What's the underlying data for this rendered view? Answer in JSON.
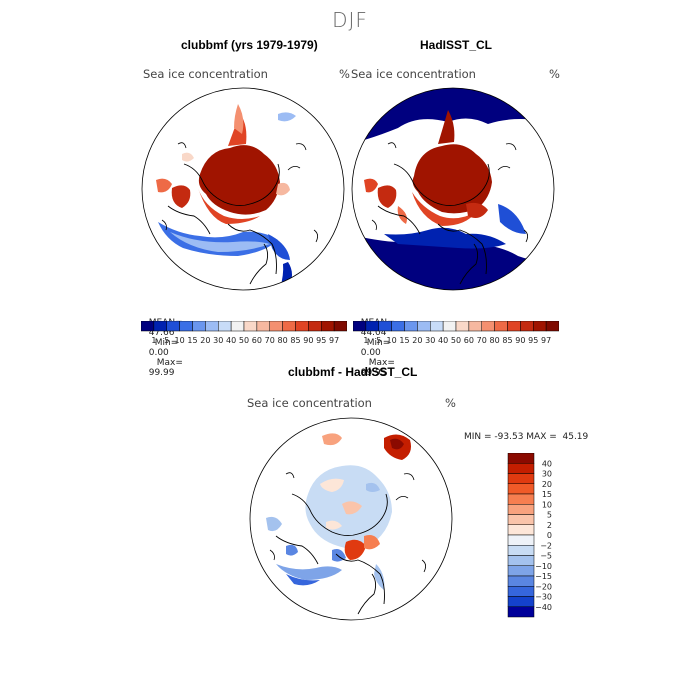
{
  "figure": {
    "season": "DJF",
    "colors": {
      "ice_dark": "#a01800",
      "ice_mid": "#e04020",
      "ice_light": "#f6a884",
      "water_dark": "#00008b",
      "water_mid": "#2f64e0",
      "water_light": "#c8dcf6",
      "neutral": "#f4f4f4"
    }
  },
  "panels": [
    {
      "title": "clubbmf (yrs 1979-1979)",
      "variable": "Sea ice concentration",
      "unit": "%",
      "mean_label": "MEAN=",
      "mean": "47.66",
      "min_label": "Min=",
      "min": "0.00",
      "max_label": "Max=",
      "max": "99.99"
    },
    {
      "title": "HadISST_CL",
      "variable": "Sea ice concentration",
      "unit": "%",
      "mean_label": "MEAN=",
      "mean": "44.04",
      "min_label": "Min=",
      "min": "0.00",
      "max_label": "Max=",
      "max": "99.95"
    }
  ],
  "abs_colorbar": {
    "labels": [
      "1",
      "5",
      "10",
      "15",
      "20",
      "30",
      "40",
      "50",
      "60",
      "70",
      "80",
      "85",
      "90",
      "95",
      "97"
    ],
    "colors": [
      "#00007f",
      "#0022b0",
      "#1f4fd6",
      "#3b6fe6",
      "#6a96ee",
      "#9cbcf4",
      "#c8dcf8",
      "#f2f2f2",
      "#f9d8c8",
      "#f6b8a0",
      "#f49070",
      "#ee6a46",
      "#e04424",
      "#c42a10",
      "#a01400",
      "#7f0a00"
    ]
  },
  "diff_panel": {
    "title": "clubbmf - HadISST_CL",
    "variable": "Sea ice concentration",
    "unit": "%",
    "min_max_label": "MIN = -93.53 MAX =  45.19"
  },
  "diff_colorbar": {
    "labels": [
      "40",
      "30",
      "20",
      "15",
      "10",
      "5",
      "2",
      "0",
      "−2",
      "−5",
      "−10",
      "−15",
      "−20",
      "−30",
      "−40"
    ],
    "colors": [
      "#8b0a00",
      "#c41e00",
      "#e03a10",
      "#f05a28",
      "#f67e50",
      "#f8a27e",
      "#fac4aa",
      "#fde6d8",
      "#eef2f8",
      "#c8dcf4",
      "#a4c2ee",
      "#7ea4e8",
      "#5a86e2",
      "#3666dc",
      "#1442cc",
      "#00009a"
    ]
  }
}
